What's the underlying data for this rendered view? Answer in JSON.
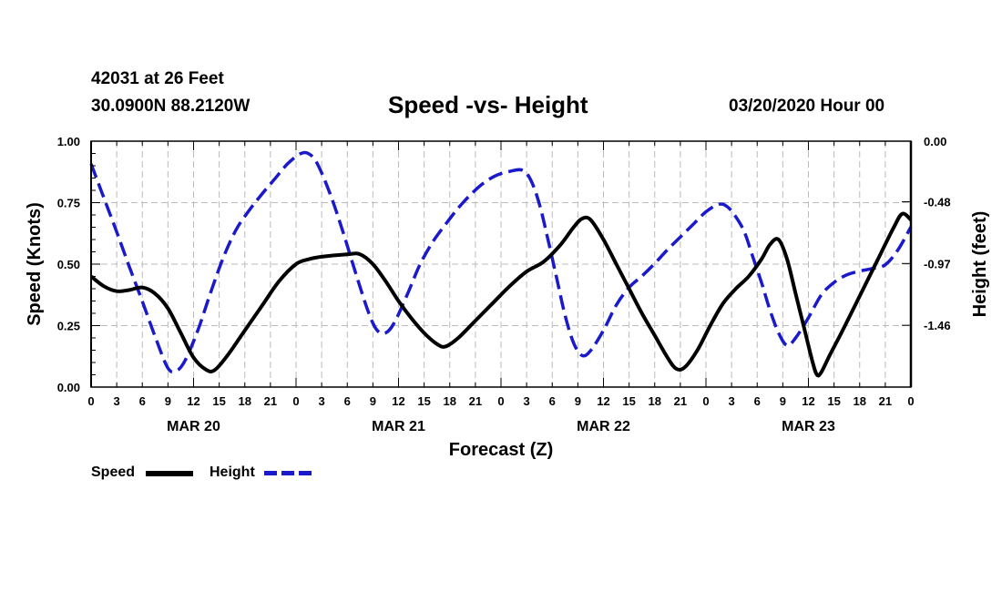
{
  "header": {
    "station": "42031 at 26 Feet",
    "coords": "30.0900N 88.2120W",
    "title": "Speed -vs- Height",
    "datetime": "03/20/2020 Hour 00"
  },
  "legend": {
    "speed_label": "Speed",
    "height_label": "Height"
  },
  "colors": {
    "speed": "#000000",
    "height": "#1a1acc",
    "grid": "#bbbbbb"
  },
  "chart_data": {
    "type": "line",
    "title": "Speed -vs- Height",
    "xlabel": "Forecast (Z)",
    "ylabel": "Speed (Knots)",
    "y2label": "Height (feet)",
    "xlim": [
      0,
      96
    ],
    "ylim": [
      0,
      1
    ],
    "y2lim": [
      -1.95,
      0
    ],
    "yticks": [
      0,
      0.25,
      0.5,
      0.75,
      1.0
    ],
    "ytick_labels": [
      "0.00",
      "0.25",
      "0.50",
      "0.75",
      "1.00"
    ],
    "y2ticks": [
      0,
      -0.48,
      -0.97,
      -1.46
    ],
    "y2tick_labels": [
      "0.00",
      "-0.48",
      "-0.97",
      "-1.46"
    ],
    "xtick_labels": [
      "0",
      "3",
      "6",
      "9",
      "12",
      "15",
      "18",
      "21",
      "0",
      "3",
      "6",
      "9",
      "12",
      "15",
      "18",
      "21",
      "0",
      "3",
      "6",
      "9",
      "12",
      "15",
      "18",
      "21",
      "0",
      "3",
      "6",
      "9",
      "12",
      "15",
      "18",
      "21",
      "0"
    ],
    "date_labels": [
      {
        "hour": 12,
        "label": "MAR 20"
      },
      {
        "hour": 36,
        "label": "MAR 21"
      },
      {
        "hour": 60,
        "label": "MAR 22"
      },
      {
        "hour": 84,
        "label": "MAR 23"
      }
    ],
    "grid": true,
    "series": [
      {
        "name": "Speed",
        "axis": "left",
        "style": "solid",
        "points": [
          [
            0,
            0.45
          ],
          [
            1.5,
            0.41
          ],
          [
            3,
            0.39
          ],
          [
            4.5,
            0.395
          ],
          [
            6,
            0.405
          ],
          [
            7.5,
            0.38
          ],
          [
            9,
            0.32
          ],
          [
            10.5,
            0.22
          ],
          [
            12,
            0.12
          ],
          [
            13.5,
            0.07
          ],
          [
            14.5,
            0.07
          ],
          [
            16,
            0.13
          ],
          [
            18,
            0.23
          ],
          [
            20,
            0.33
          ],
          [
            22,
            0.43
          ],
          [
            24,
            0.5
          ],
          [
            25.5,
            0.52
          ],
          [
            27,
            0.53
          ],
          [
            30,
            0.54
          ],
          [
            31.5,
            0.54
          ],
          [
            33,
            0.5
          ],
          [
            34.5,
            0.43
          ],
          [
            36,
            0.35
          ],
          [
            37.5,
            0.28
          ],
          [
            39,
            0.22
          ],
          [
            40.5,
            0.175
          ],
          [
            41.5,
            0.165
          ],
          [
            43,
            0.2
          ],
          [
            45,
            0.27
          ],
          [
            47,
            0.34
          ],
          [
            49,
            0.41
          ],
          [
            51,
            0.47
          ],
          [
            53,
            0.51
          ],
          [
            55,
            0.58
          ],
          [
            56.5,
            0.65
          ],
          [
            57.5,
            0.685
          ],
          [
            58.5,
            0.68
          ],
          [
            60,
            0.6
          ],
          [
            61.5,
            0.5
          ],
          [
            63,
            0.4
          ],
          [
            64.5,
            0.3
          ],
          [
            66,
            0.21
          ],
          [
            67.5,
            0.12
          ],
          [
            68.5,
            0.075
          ],
          [
            69.5,
            0.08
          ],
          [
            71,
            0.15
          ],
          [
            72.5,
            0.25
          ],
          [
            74,
            0.34
          ],
          [
            75.5,
            0.4
          ],
          [
            77,
            0.45
          ],
          [
            78.5,
            0.52
          ],
          [
            79.5,
            0.58
          ],
          [
            80.5,
            0.6
          ],
          [
            81.5,
            0.52
          ],
          [
            82.5,
            0.38
          ],
          [
            83.5,
            0.24
          ],
          [
            84.5,
            0.1
          ],
          [
            85,
            0.05
          ],
          [
            85.5,
            0.06
          ],
          [
            86.5,
            0.13
          ],
          [
            88,
            0.23
          ],
          [
            90,
            0.37
          ],
          [
            92,
            0.51
          ],
          [
            94,
            0.65
          ],
          [
            95,
            0.705
          ],
          [
            96,
            0.68
          ]
        ]
      },
      {
        "name": "Height",
        "axis": "right",
        "style": "dashed",
        "points": [
          [
            0,
            -0.18
          ],
          [
            1.5,
            -0.45
          ],
          [
            3,
            -0.72
          ],
          [
            4.5,
            -1.0
          ],
          [
            6,
            -1.27
          ],
          [
            7.5,
            -1.55
          ],
          [
            9,
            -1.8
          ],
          [
            10,
            -1.82
          ],
          [
            11,
            -1.74
          ],
          [
            12.5,
            -1.5
          ],
          [
            14,
            -1.2
          ],
          [
            15.5,
            -0.92
          ],
          [
            17,
            -0.7
          ],
          [
            18.5,
            -0.55
          ],
          [
            20,
            -0.42
          ],
          [
            21.5,
            -0.3
          ],
          [
            23,
            -0.18
          ],
          [
            24.5,
            -0.1
          ],
          [
            25.5,
            -0.1
          ],
          [
            26.5,
            -0.18
          ],
          [
            28,
            -0.42
          ],
          [
            29.5,
            -0.72
          ],
          [
            31,
            -1.05
          ],
          [
            32.5,
            -1.36
          ],
          [
            33.5,
            -1.5
          ],
          [
            34.5,
            -1.52
          ],
          [
            35.5,
            -1.44
          ],
          [
            37,
            -1.22
          ],
          [
            38.5,
            -0.98
          ],
          [
            40,
            -0.8
          ],
          [
            41.5,
            -0.66
          ],
          [
            43,
            -0.53
          ],
          [
            44.5,
            -0.42
          ],
          [
            46,
            -0.33
          ],
          [
            47.5,
            -0.27
          ],
          [
            49,
            -0.24
          ],
          [
            50.5,
            -0.23
          ],
          [
            51.5,
            -0.31
          ],
          [
            52.5,
            -0.5
          ],
          [
            53.5,
            -0.78
          ],
          [
            54.5,
            -1.08
          ],
          [
            55.5,
            -1.38
          ],
          [
            56.5,
            -1.6
          ],
          [
            57.5,
            -1.7
          ],
          [
            58.5,
            -1.66
          ],
          [
            60,
            -1.5
          ],
          [
            61.5,
            -1.3
          ],
          [
            63,
            -1.16
          ],
          [
            64.5,
            -1.07
          ],
          [
            66,
            -0.97
          ],
          [
            67.5,
            -0.86
          ],
          [
            69,
            -0.76
          ],
          [
            70.5,
            -0.66
          ],
          [
            72,
            -0.56
          ],
          [
            73.5,
            -0.5
          ],
          [
            74.5,
            -0.52
          ],
          [
            75.5,
            -0.6
          ],
          [
            76.5,
            -0.72
          ],
          [
            77.5,
            -0.92
          ],
          [
            78.5,
            -1.12
          ],
          [
            79.5,
            -1.34
          ],
          [
            80.5,
            -1.52
          ],
          [
            81.5,
            -1.62
          ],
          [
            82.5,
            -1.56
          ],
          [
            84,
            -1.4
          ],
          [
            85.5,
            -1.22
          ],
          [
            87,
            -1.12
          ],
          [
            88.5,
            -1.06
          ],
          [
            90,
            -1.03
          ],
          [
            91.5,
            -1.01
          ],
          [
            93,
            -0.98
          ],
          [
            94.5,
            -0.86
          ],
          [
            96,
            -0.68
          ]
        ]
      }
    ]
  }
}
